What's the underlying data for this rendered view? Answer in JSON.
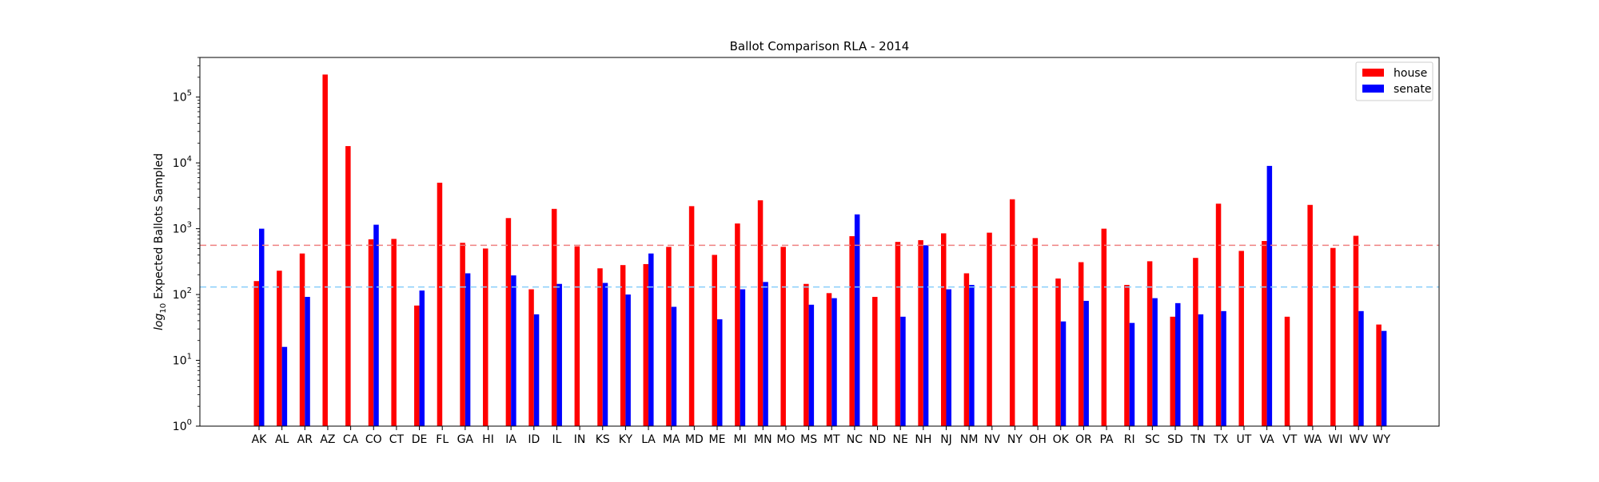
{
  "chart_data": {
    "type": "bar",
    "title": "Ballot Comparison RLA - 2014",
    "ylabel": "Expected Ballots Sampled",
    "ylabel_prefix": "log",
    "ylabel_subscript": "10",
    "yscale": "log",
    "ylim": [
      1,
      400000
    ],
    "yticks": [
      {
        "base": "10",
        "exp": "0",
        "value": 1
      },
      {
        "base": "10",
        "exp": "1",
        "value": 10
      },
      {
        "base": "10",
        "exp": "2",
        "value": 100
      },
      {
        "base": "10",
        "exp": "3",
        "value": 1000
      },
      {
        "base": "10",
        "exp": "4",
        "value": 10000
      },
      {
        "base": "10",
        "exp": "5",
        "value": 100000
      }
    ],
    "grid": false,
    "legend_position": "top-right",
    "categories": [
      "AK",
      "AL",
      "AR",
      "AZ",
      "CA",
      "CO",
      "CT",
      "DE",
      "FL",
      "GA",
      "HI",
      "IA",
      "ID",
      "IL",
      "IN",
      "KS",
      "KY",
      "LA",
      "MA",
      "MD",
      "ME",
      "MI",
      "MN",
      "MO",
      "MS",
      "MT",
      "NC",
      "ND",
      "NE",
      "NH",
      "NJ",
      "NM",
      "NV",
      "NY",
      "OH",
      "OK",
      "OR",
      "PA",
      "RI",
      "SC",
      "SD",
      "TN",
      "TX",
      "UT",
      "VA",
      "VT",
      "WA",
      "WI",
      "WV",
      "WY"
    ],
    "series": [
      {
        "name": "house",
        "color": "#ff0000",
        "values": [
          160,
          230,
          420,
          220000,
          18000,
          690,
          700,
          68,
          5000,
          610,
          500,
          1450,
          120,
          2000,
          540,
          250,
          280,
          290,
          530,
          2200,
          400,
          1200,
          2700,
          530,
          145,
          105,
          770,
          92,
          630,
          670,
          850,
          210,
          870,
          2800,
          720,
          175,
          310,
          1000,
          140,
          320,
          46,
          360,
          2400,
          460,
          650,
          46,
          2300,
          510,
          780,
          35
        ]
      },
      {
        "name": "senate",
        "color": "#0000ff",
        "values": [
          1000,
          16,
          92,
          null,
          null,
          1150,
          null,
          115,
          null,
          210,
          null,
          195,
          50,
          145,
          null,
          150,
          100,
          420,
          65,
          null,
          42,
          120,
          155,
          null,
          70,
          88,
          1650,
          null,
          46,
          560,
          120,
          140,
          null,
          null,
          null,
          39,
          80,
          null,
          37,
          88,
          74,
          50,
          56,
          null,
          9000,
          null,
          null,
          null,
          56,
          28
        ]
      }
    ],
    "reference_lines": [
      {
        "value": 560,
        "color": "#f08080"
      },
      {
        "value": 130,
        "color": "#87cefa"
      }
    ]
  }
}
